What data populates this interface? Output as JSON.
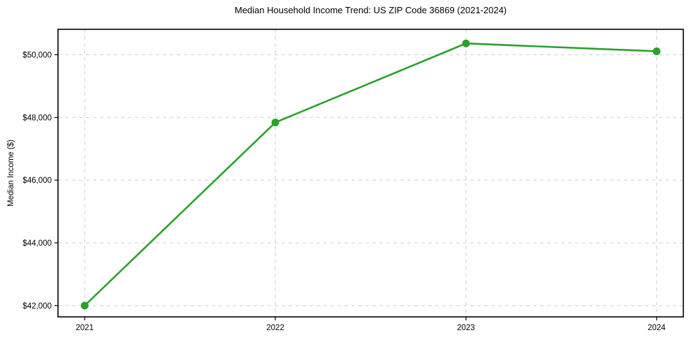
{
  "figure": {
    "background": "#ffffff"
  },
  "chart_data": {
    "type": "line",
    "title": "Median Household Income Trend: US ZIP Code 36869 (2021-2024)",
    "xlabel": "",
    "ylabel": "Median Income ($)",
    "x": [
      2021,
      2022,
      2023,
      2024
    ],
    "xticks": [
      "2021",
      "2022",
      "2023",
      "2024"
    ],
    "yticks": [
      42000,
      44000,
      46000,
      48000,
      50000
    ],
    "ytick_labels": [
      "$42,000",
      "$44,000",
      "$46,000",
      "$48,000",
      "$50,000"
    ],
    "series": [
      {
        "name": "Median Household Income",
        "values": [
          42000,
          47840,
          50360,
          50110
        ],
        "color": "#2ca02c",
        "marker": "circle"
      }
    ],
    "xlim": [
      2020.86,
      2024.14
    ],
    "ylim": [
      41640,
      50810
    ],
    "grid": true,
    "grid_style": "dashed",
    "grid_color": "#cccccc",
    "axes_color": "#000000",
    "text_color": "#000000",
    "legend": "none"
  }
}
